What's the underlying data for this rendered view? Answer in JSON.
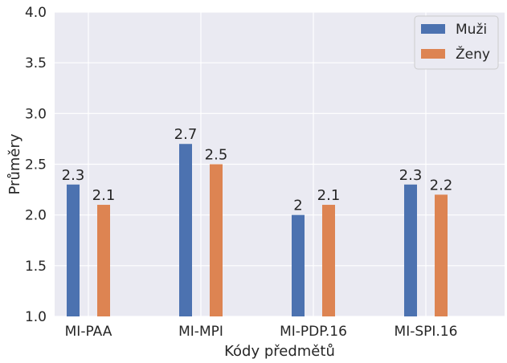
{
  "chart_data": {
    "type": "bar",
    "title": "",
    "xlabel": "Kódy předmětů",
    "ylabel": "Průměry",
    "categories": [
      "MI-PAA",
      "MI-MPI",
      "MI-PDP.16",
      "MI-SPI.16"
    ],
    "series": [
      {
        "name": "Muži",
        "color": "#4c72b0",
        "values": [
          2.3,
          2.7,
          2,
          2.3
        ],
        "labels": [
          "2.3",
          "2.7",
          "2",
          "2.3"
        ]
      },
      {
        "name": "Ženy",
        "color": "#dd8452",
        "values": [
          2.1,
          2.5,
          2.1,
          2.2
        ],
        "labels": [
          "2.1",
          "2.5",
          "2.1",
          "2.2"
        ]
      }
    ],
    "ylim": [
      1.0,
      4.0
    ],
    "yticks": [
      "1.0",
      "1.5",
      "2.0",
      "2.5",
      "3.0",
      "3.5",
      "4.0"
    ],
    "grid": true,
    "legend_position": "top-right",
    "background": "#eaeaf2",
    "grid_color": "#ffffff"
  }
}
